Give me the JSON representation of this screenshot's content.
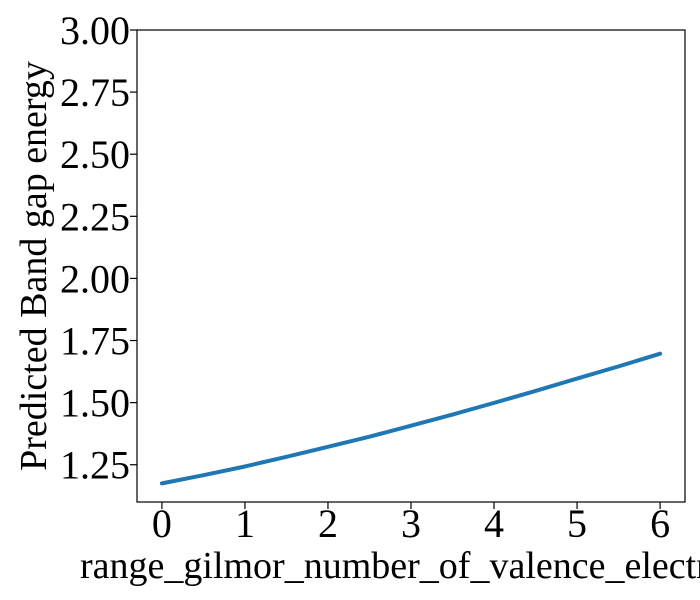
{
  "chart_data": {
    "type": "line",
    "title": "",
    "xlabel": "range_gilmor_number_of_valence_electr",
    "ylabel": "Predicted Band gap energy",
    "xlim": [
      -0.3,
      6.3
    ],
    "ylim": [
      1.1,
      3.0
    ],
    "xticks": [
      0,
      1,
      2,
      3,
      4,
      5,
      6
    ],
    "xtick_labels": [
      "0",
      "1",
      "2",
      "3",
      "4",
      "5",
      "6"
    ],
    "yticks": [
      1.25,
      1.5,
      1.75,
      2.0,
      2.25,
      2.5,
      2.75,
      3.0
    ],
    "ytick_labels": [
      "1.25",
      "1.50",
      "1.75",
      "2.00",
      "2.25",
      "2.50",
      "2.75",
      "3.00"
    ],
    "grid": false,
    "series": [
      {
        "color": "#1f77b4",
        "x": [
          0,
          0.5,
          1,
          1.5,
          2,
          2.5,
          3,
          3.5,
          4,
          4.5,
          5,
          5.5,
          6
        ],
        "y": [
          1.175,
          1.208,
          1.243,
          1.282,
          1.322,
          1.363,
          1.407,
          1.452,
          1.499,
          1.547,
          1.597,
          1.646,
          1.697
        ]
      }
    ]
  }
}
